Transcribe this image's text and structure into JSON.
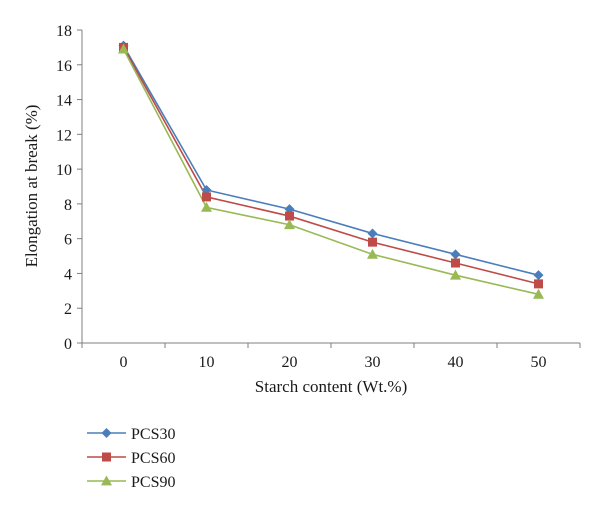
{
  "chart_data": {
    "type": "line",
    "x": [
      0,
      10,
      20,
      30,
      40,
      50
    ],
    "series": [
      {
        "name": "PCS30",
        "values": [
          17.1,
          8.8,
          7.7,
          6.3,
          5.1,
          3.9
        ],
        "color": "#4a7ebb",
        "marker": "diamond"
      },
      {
        "name": "PCS60",
        "values": [
          17.0,
          8.4,
          7.3,
          5.8,
          4.6,
          3.4
        ],
        "color": "#be4b48",
        "marker": "square"
      },
      {
        "name": "PCS90",
        "values": [
          16.9,
          7.8,
          6.8,
          5.1,
          3.9,
          2.8
        ],
        "color": "#98b954",
        "marker": "triangle"
      }
    ],
    "xlabel": "Starch content (Wt.%)",
    "ylabel": "Elongation at break (%)",
    "ylim": [
      0,
      18
    ],
    "yticks": [
      0,
      2,
      4,
      6,
      8,
      10,
      12,
      14,
      16,
      18
    ],
    "grid": false,
    "legend_position": "bottom-left"
  }
}
